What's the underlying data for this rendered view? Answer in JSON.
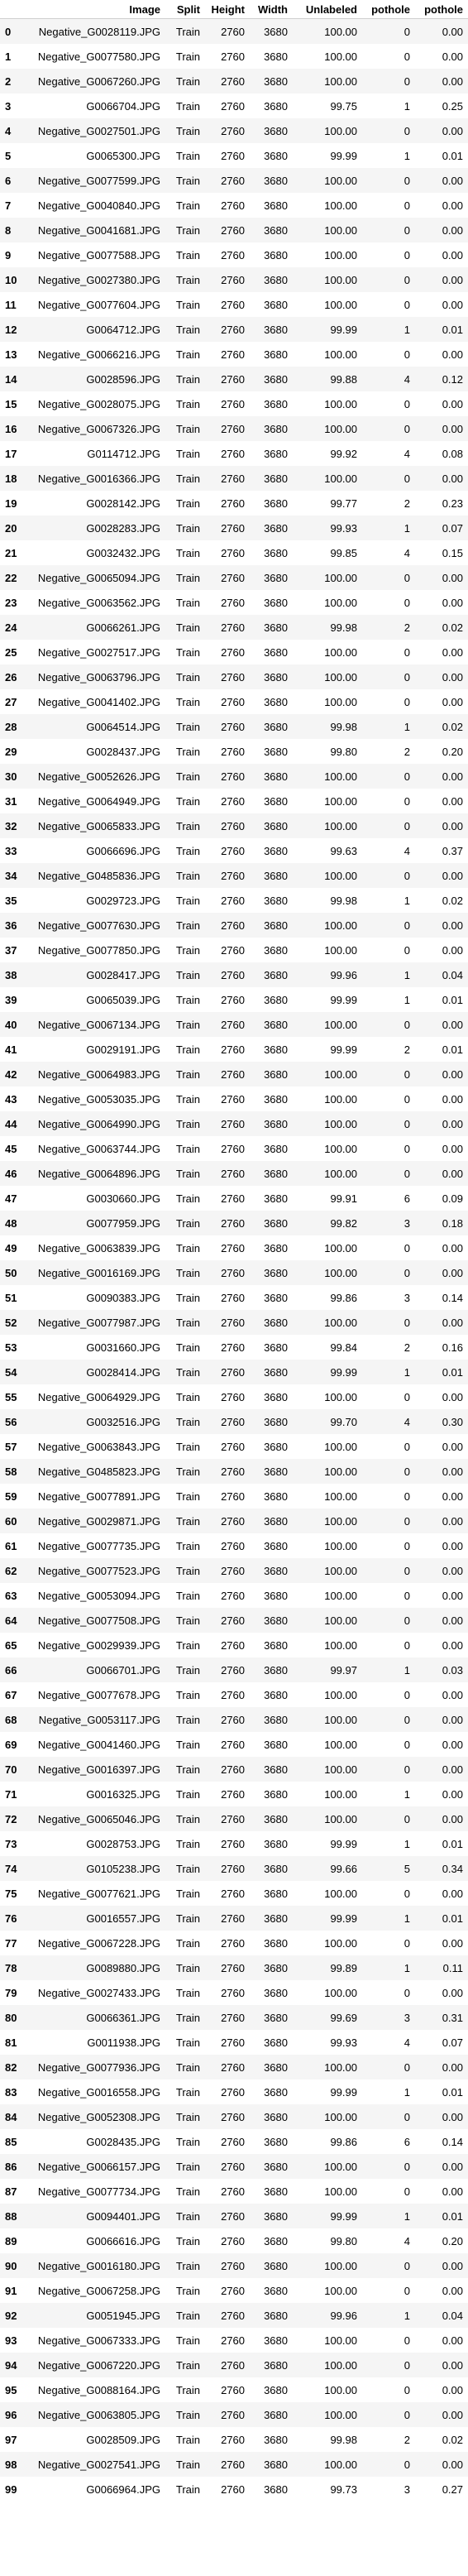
{
  "table": {
    "columns": [
      "",
      "Image",
      "Split",
      "Height",
      "Width",
      "Unlabeled",
      "pothole",
      "pothole"
    ],
    "rows": [
      [
        "0",
        "Negative_G0028119.JPG",
        "Train",
        "2760",
        "3680",
        "100.00",
        "0",
        "0.00"
      ],
      [
        "1",
        "Negative_G0077580.JPG",
        "Train",
        "2760",
        "3680",
        "100.00",
        "0",
        "0.00"
      ],
      [
        "2",
        "Negative_G0067260.JPG",
        "Train",
        "2760",
        "3680",
        "100.00",
        "0",
        "0.00"
      ],
      [
        "3",
        "G0066704.JPG",
        "Train",
        "2760",
        "3680",
        "99.75",
        "1",
        "0.25"
      ],
      [
        "4",
        "Negative_G0027501.JPG",
        "Train",
        "2760",
        "3680",
        "100.00",
        "0",
        "0.00"
      ],
      [
        "5",
        "G0065300.JPG",
        "Train",
        "2760",
        "3680",
        "99.99",
        "1",
        "0.01"
      ],
      [
        "6",
        "Negative_G0077599.JPG",
        "Train",
        "2760",
        "3680",
        "100.00",
        "0",
        "0.00"
      ],
      [
        "7",
        "Negative_G0040840.JPG",
        "Train",
        "2760",
        "3680",
        "100.00",
        "0",
        "0.00"
      ],
      [
        "8",
        "Negative_G0041681.JPG",
        "Train",
        "2760",
        "3680",
        "100.00",
        "0",
        "0.00"
      ],
      [
        "9",
        "Negative_G0077588.JPG",
        "Train",
        "2760",
        "3680",
        "100.00",
        "0",
        "0.00"
      ],
      [
        "10",
        "Negative_G0027380.JPG",
        "Train",
        "2760",
        "3680",
        "100.00",
        "0",
        "0.00"
      ],
      [
        "11",
        "Negative_G0077604.JPG",
        "Train",
        "2760",
        "3680",
        "100.00",
        "0",
        "0.00"
      ],
      [
        "12",
        "G0064712.JPG",
        "Train",
        "2760",
        "3680",
        "99.99",
        "1",
        "0.01"
      ],
      [
        "13",
        "Negative_G0066216.JPG",
        "Train",
        "2760",
        "3680",
        "100.00",
        "0",
        "0.00"
      ],
      [
        "14",
        "G0028596.JPG",
        "Train",
        "2760",
        "3680",
        "99.88",
        "4",
        "0.12"
      ],
      [
        "15",
        "Negative_G0028075.JPG",
        "Train",
        "2760",
        "3680",
        "100.00",
        "0",
        "0.00"
      ],
      [
        "16",
        "Negative_G0067326.JPG",
        "Train",
        "2760",
        "3680",
        "100.00",
        "0",
        "0.00"
      ],
      [
        "17",
        "G0114712.JPG",
        "Train",
        "2760",
        "3680",
        "99.92",
        "4",
        "0.08"
      ],
      [
        "18",
        "Negative_G0016366.JPG",
        "Train",
        "2760",
        "3680",
        "100.00",
        "0",
        "0.00"
      ],
      [
        "19",
        "G0028142.JPG",
        "Train",
        "2760",
        "3680",
        "99.77",
        "2",
        "0.23"
      ],
      [
        "20",
        "G0028283.JPG",
        "Train",
        "2760",
        "3680",
        "99.93",
        "1",
        "0.07"
      ],
      [
        "21",
        "G0032432.JPG",
        "Train",
        "2760",
        "3680",
        "99.85",
        "4",
        "0.15"
      ],
      [
        "22",
        "Negative_G0065094.JPG",
        "Train",
        "2760",
        "3680",
        "100.00",
        "0",
        "0.00"
      ],
      [
        "23",
        "Negative_G0063562.JPG",
        "Train",
        "2760",
        "3680",
        "100.00",
        "0",
        "0.00"
      ],
      [
        "24",
        "G0066261.JPG",
        "Train",
        "2760",
        "3680",
        "99.98",
        "2",
        "0.02"
      ],
      [
        "25",
        "Negative_G0027517.JPG",
        "Train",
        "2760",
        "3680",
        "100.00",
        "0",
        "0.00"
      ],
      [
        "26",
        "Negative_G0063796.JPG",
        "Train",
        "2760",
        "3680",
        "100.00",
        "0",
        "0.00"
      ],
      [
        "27",
        "Negative_G0041402.JPG",
        "Train",
        "2760",
        "3680",
        "100.00",
        "0",
        "0.00"
      ],
      [
        "28",
        "G0064514.JPG",
        "Train",
        "2760",
        "3680",
        "99.98",
        "1",
        "0.02"
      ],
      [
        "29",
        "G0028437.JPG",
        "Train",
        "2760",
        "3680",
        "99.80",
        "2",
        "0.20"
      ],
      [
        "30",
        "Negative_G0052626.JPG",
        "Train",
        "2760",
        "3680",
        "100.00",
        "0",
        "0.00"
      ],
      [
        "31",
        "Negative_G0064949.JPG",
        "Train",
        "2760",
        "3680",
        "100.00",
        "0",
        "0.00"
      ],
      [
        "32",
        "Negative_G0065833.JPG",
        "Train",
        "2760",
        "3680",
        "100.00",
        "0",
        "0.00"
      ],
      [
        "33",
        "G0066696.JPG",
        "Train",
        "2760",
        "3680",
        "99.63",
        "4",
        "0.37"
      ],
      [
        "34",
        "Negative_G0485836.JPG",
        "Train",
        "2760",
        "3680",
        "100.00",
        "0",
        "0.00"
      ],
      [
        "35",
        "G0029723.JPG",
        "Train",
        "2760",
        "3680",
        "99.98",
        "1",
        "0.02"
      ],
      [
        "36",
        "Negative_G0077630.JPG",
        "Train",
        "2760",
        "3680",
        "100.00",
        "0",
        "0.00"
      ],
      [
        "37",
        "Negative_G0077850.JPG",
        "Train",
        "2760",
        "3680",
        "100.00",
        "0",
        "0.00"
      ],
      [
        "38",
        "G0028417.JPG",
        "Train",
        "2760",
        "3680",
        "99.96",
        "1",
        "0.04"
      ],
      [
        "39",
        "G0065039.JPG",
        "Train",
        "2760",
        "3680",
        "99.99",
        "1",
        "0.01"
      ],
      [
        "40",
        "Negative_G0067134.JPG",
        "Train",
        "2760",
        "3680",
        "100.00",
        "0",
        "0.00"
      ],
      [
        "41",
        "G0029191.JPG",
        "Train",
        "2760",
        "3680",
        "99.99",
        "2",
        "0.01"
      ],
      [
        "42",
        "Negative_G0064983.JPG",
        "Train",
        "2760",
        "3680",
        "100.00",
        "0",
        "0.00"
      ],
      [
        "43",
        "Negative_G0053035.JPG",
        "Train",
        "2760",
        "3680",
        "100.00",
        "0",
        "0.00"
      ],
      [
        "44",
        "Negative_G0064990.JPG",
        "Train",
        "2760",
        "3680",
        "100.00",
        "0",
        "0.00"
      ],
      [
        "45",
        "Negative_G0063744.JPG",
        "Train",
        "2760",
        "3680",
        "100.00",
        "0",
        "0.00"
      ],
      [
        "46",
        "Negative_G0064896.JPG",
        "Train",
        "2760",
        "3680",
        "100.00",
        "0",
        "0.00"
      ],
      [
        "47",
        "G0030660.JPG",
        "Train",
        "2760",
        "3680",
        "99.91",
        "6",
        "0.09"
      ],
      [
        "48",
        "G0077959.JPG",
        "Train",
        "2760",
        "3680",
        "99.82",
        "3",
        "0.18"
      ],
      [
        "49",
        "Negative_G0063839.JPG",
        "Train",
        "2760",
        "3680",
        "100.00",
        "0",
        "0.00"
      ],
      [
        "50",
        "Negative_G0016169.JPG",
        "Train",
        "2760",
        "3680",
        "100.00",
        "0",
        "0.00"
      ],
      [
        "51",
        "G0090383.JPG",
        "Train",
        "2760",
        "3680",
        "99.86",
        "3",
        "0.14"
      ],
      [
        "52",
        "Negative_G0077987.JPG",
        "Train",
        "2760",
        "3680",
        "100.00",
        "0",
        "0.00"
      ],
      [
        "53",
        "G0031660.JPG",
        "Train",
        "2760",
        "3680",
        "99.84",
        "2",
        "0.16"
      ],
      [
        "54",
        "G0028414.JPG",
        "Train",
        "2760",
        "3680",
        "99.99",
        "1",
        "0.01"
      ],
      [
        "55",
        "Negative_G0064929.JPG",
        "Train",
        "2760",
        "3680",
        "100.00",
        "0",
        "0.00"
      ],
      [
        "56",
        "G0032516.JPG",
        "Train",
        "2760",
        "3680",
        "99.70",
        "4",
        "0.30"
      ],
      [
        "57",
        "Negative_G0063843.JPG",
        "Train",
        "2760",
        "3680",
        "100.00",
        "0",
        "0.00"
      ],
      [
        "58",
        "Negative_G0485823.JPG",
        "Train",
        "2760",
        "3680",
        "100.00",
        "0",
        "0.00"
      ],
      [
        "59",
        "Negative_G0077891.JPG",
        "Train",
        "2760",
        "3680",
        "100.00",
        "0",
        "0.00"
      ],
      [
        "60",
        "Negative_G0029871.JPG",
        "Train",
        "2760",
        "3680",
        "100.00",
        "0",
        "0.00"
      ],
      [
        "61",
        "Negative_G0077735.JPG",
        "Train",
        "2760",
        "3680",
        "100.00",
        "0",
        "0.00"
      ],
      [
        "62",
        "Negative_G0077523.JPG",
        "Train",
        "2760",
        "3680",
        "100.00",
        "0",
        "0.00"
      ],
      [
        "63",
        "Negative_G0053094.JPG",
        "Train",
        "2760",
        "3680",
        "100.00",
        "0",
        "0.00"
      ],
      [
        "64",
        "Negative_G0077508.JPG",
        "Train",
        "2760",
        "3680",
        "100.00",
        "0",
        "0.00"
      ],
      [
        "65",
        "Negative_G0029939.JPG",
        "Train",
        "2760",
        "3680",
        "100.00",
        "0",
        "0.00"
      ],
      [
        "66",
        "G0066701.JPG",
        "Train",
        "2760",
        "3680",
        "99.97",
        "1",
        "0.03"
      ],
      [
        "67",
        "Negative_G0077678.JPG",
        "Train",
        "2760",
        "3680",
        "100.00",
        "0",
        "0.00"
      ],
      [
        "68",
        "Negative_G0053117.JPG",
        "Train",
        "2760",
        "3680",
        "100.00",
        "0",
        "0.00"
      ],
      [
        "69",
        "Negative_G0041460.JPG",
        "Train",
        "2760",
        "3680",
        "100.00",
        "0",
        "0.00"
      ],
      [
        "70",
        "Negative_G0016397.JPG",
        "Train",
        "2760",
        "3680",
        "100.00",
        "0",
        "0.00"
      ],
      [
        "71",
        "G0016325.JPG",
        "Train",
        "2760",
        "3680",
        "100.00",
        "1",
        "0.00"
      ],
      [
        "72",
        "Negative_G0065046.JPG",
        "Train",
        "2760",
        "3680",
        "100.00",
        "0",
        "0.00"
      ],
      [
        "73",
        "G0028753.JPG",
        "Train",
        "2760",
        "3680",
        "99.99",
        "1",
        "0.01"
      ],
      [
        "74",
        "G0105238.JPG",
        "Train",
        "2760",
        "3680",
        "99.66",
        "5",
        "0.34"
      ],
      [
        "75",
        "Negative_G0077621.JPG",
        "Train",
        "2760",
        "3680",
        "100.00",
        "0",
        "0.00"
      ],
      [
        "76",
        "G0016557.JPG",
        "Train",
        "2760",
        "3680",
        "99.99",
        "1",
        "0.01"
      ],
      [
        "77",
        "Negative_G0067228.JPG",
        "Train",
        "2760",
        "3680",
        "100.00",
        "0",
        "0.00"
      ],
      [
        "78",
        "G0089880.JPG",
        "Train",
        "2760",
        "3680",
        "99.89",
        "1",
        "0.11"
      ],
      [
        "79",
        "Negative_G0027433.JPG",
        "Train",
        "2760",
        "3680",
        "100.00",
        "0",
        "0.00"
      ],
      [
        "80",
        "G0066361.JPG",
        "Train",
        "2760",
        "3680",
        "99.69",
        "3",
        "0.31"
      ],
      [
        "81",
        "G0011938.JPG",
        "Train",
        "2760",
        "3680",
        "99.93",
        "4",
        "0.07"
      ],
      [
        "82",
        "Negative_G0077936.JPG",
        "Train",
        "2760",
        "3680",
        "100.00",
        "0",
        "0.00"
      ],
      [
        "83",
        "Negative_G0016558.JPG",
        "Train",
        "2760",
        "3680",
        "99.99",
        "1",
        "0.01"
      ],
      [
        "84",
        "Negative_G0052308.JPG",
        "Train",
        "2760",
        "3680",
        "100.00",
        "0",
        "0.00"
      ],
      [
        "85",
        "G0028435.JPG",
        "Train",
        "2760",
        "3680",
        "99.86",
        "6",
        "0.14"
      ],
      [
        "86",
        "Negative_G0066157.JPG",
        "Train",
        "2760",
        "3680",
        "100.00",
        "0",
        "0.00"
      ],
      [
        "87",
        "Negative_G0077734.JPG",
        "Train",
        "2760",
        "3680",
        "100.00",
        "0",
        "0.00"
      ],
      [
        "88",
        "G0094401.JPG",
        "Train",
        "2760",
        "3680",
        "99.99",
        "1",
        "0.01"
      ],
      [
        "89",
        "G0066616.JPG",
        "Train",
        "2760",
        "3680",
        "99.80",
        "4",
        "0.20"
      ],
      [
        "90",
        "Negative_G0016180.JPG",
        "Train",
        "2760",
        "3680",
        "100.00",
        "0",
        "0.00"
      ],
      [
        "91",
        "Negative_G0067258.JPG",
        "Train",
        "2760",
        "3680",
        "100.00",
        "0",
        "0.00"
      ],
      [
        "92",
        "G0051945.JPG",
        "Train",
        "2760",
        "3680",
        "99.96",
        "1",
        "0.04"
      ],
      [
        "93",
        "Negative_G0067333.JPG",
        "Train",
        "2760",
        "3680",
        "100.00",
        "0",
        "0.00"
      ],
      [
        "94",
        "Negative_G0067220.JPG",
        "Train",
        "2760",
        "3680",
        "100.00",
        "0",
        "0.00"
      ],
      [
        "95",
        "Negative_G0088164.JPG",
        "Train",
        "2760",
        "3680",
        "100.00",
        "0",
        "0.00"
      ],
      [
        "96",
        "Negative_G0063805.JPG",
        "Train",
        "2760",
        "3680",
        "100.00",
        "0",
        "0.00"
      ],
      [
        "97",
        "G0028509.JPG",
        "Train",
        "2760",
        "3680",
        "99.98",
        "2",
        "0.02"
      ],
      [
        "98",
        "Negative_G0027541.JPG",
        "Train",
        "2760",
        "3680",
        "100.00",
        "0",
        "0.00"
      ],
      [
        "99",
        "G0066964.JPG",
        "Train",
        "2760",
        "3680",
        "99.73",
        "3",
        "0.27"
      ]
    ]
  }
}
